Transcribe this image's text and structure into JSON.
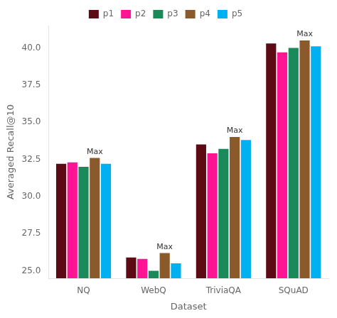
{
  "chart_data": {
    "type": "bar",
    "xlabel": "Dataset",
    "ylabel": "Averaged Recall@10",
    "categories": [
      "NQ",
      "WebQ",
      "TriviaQA",
      "SQuAD"
    ],
    "series": [
      {
        "name": "p1",
        "color": "#5C0A14",
        "values": [
          32.2,
          25.9,
          33.5,
          40.3
        ]
      },
      {
        "name": "p2",
        "color": "#FF1493",
        "values": [
          32.3,
          25.8,
          32.9,
          39.7
        ]
      },
      {
        "name": "p3",
        "color": "#1B8A5A",
        "values": [
          32.0,
          25.0,
          33.2,
          40.0
        ]
      },
      {
        "name": "p4",
        "color": "#8B5A2B",
        "values": [
          32.6,
          26.2,
          34.0,
          40.5
        ]
      },
      {
        "name": "p5",
        "color": "#00B0F0",
        "values": [
          32.2,
          25.5,
          33.8,
          40.1
        ]
      }
    ],
    "annotations": [
      {
        "text": "Max",
        "category": "NQ",
        "series": "p4"
      },
      {
        "text": "Max",
        "category": "WebQ",
        "series": "p4"
      },
      {
        "text": "Max",
        "category": "TriviaQA",
        "series": "p4"
      },
      {
        "text": "Max",
        "category": "SQuAD",
        "series": "p4"
      }
    ],
    "ylim": [
      24.5,
      41.5
    ],
    "yticks": [
      {
        "value": 25.0,
        "label": "25.0"
      },
      {
        "value": 27.5,
        "label": "27.5"
      },
      {
        "value": 30.0,
        "label": "30.0"
      },
      {
        "value": 32.5,
        "label": "32.5"
      },
      {
        "value": 35.0,
        "label": "35.0"
      },
      {
        "value": 37.5,
        "label": "37.5"
      },
      {
        "value": 40.0,
        "label": "40.0"
      }
    ],
    "legend": "top",
    "grid": false
  }
}
